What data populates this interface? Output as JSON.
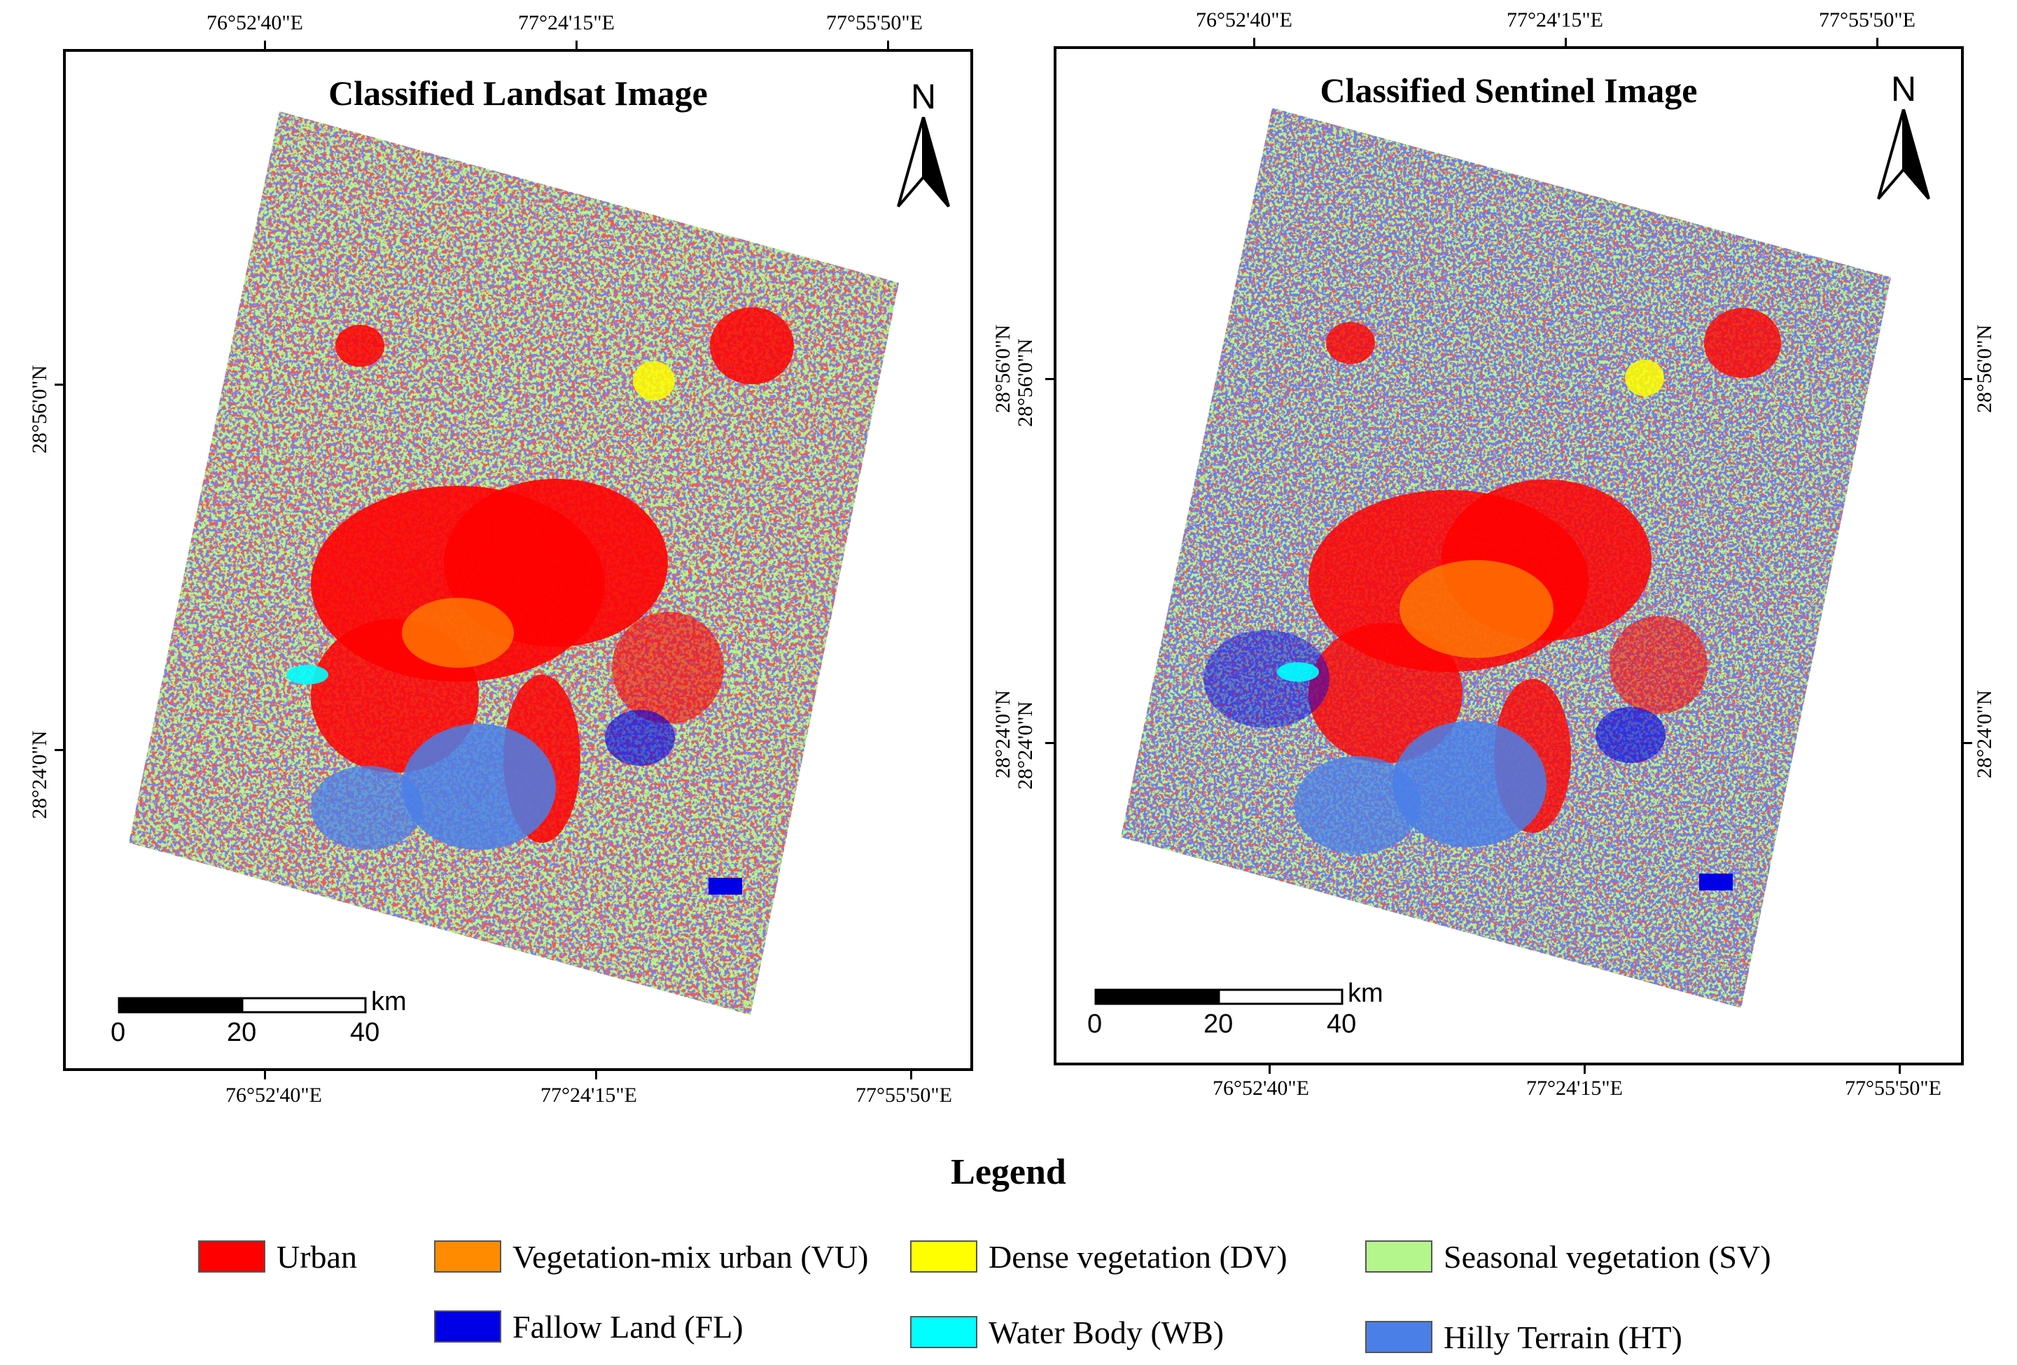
{
  "maps": [
    {
      "title": "Classified Landsat Image",
      "top_lon": [
        "76°52'40\"E",
        "77°24'15\"E",
        "77°55'50\"E"
      ],
      "bottom_lon": [
        "76°52'40\"E",
        "77°24'15\"E",
        "77°55'50\"E"
      ],
      "left_lat": [
        "28°56'0\"N",
        "28°24'0\"N"
      ],
      "right_lat": [
        "28°56'0\"N",
        "28°24'0\"N"
      ],
      "north_label": "N",
      "scale": {
        "unit": "km",
        "ticks": [
          "0",
          "20",
          "40"
        ]
      }
    },
    {
      "title": "Classified Sentinel Image",
      "top_lon": [
        "76°52'40\"E",
        "77°24'15\"E",
        "77°55'50\"E"
      ],
      "bottom_lon": [
        "76°52'40\"E",
        "77°24'15\"E",
        "77°55'50\"E"
      ],
      "left_lat": [
        "28°56'0\"N",
        "28°24'0\"N"
      ],
      "right_lat": [
        "28°56'0\"N",
        "28°24'0\"N"
      ],
      "north_label": "N",
      "scale": {
        "unit": "km",
        "ticks": [
          "0",
          "20",
          "40"
        ]
      }
    }
  ],
  "legend": {
    "title": "Legend",
    "items": [
      {
        "label": "Urban",
        "color": "#ff0000"
      },
      {
        "label": "Vegetation-mix urban (VU)",
        "color": "#ff8c00"
      },
      {
        "label": "Dense vegetation (DV)",
        "color": "#ffff00"
      },
      {
        "label": "Seasonal vegetation (SV)",
        "color": "#b4f58c"
      },
      {
        "label": "Fallow Land (FL)",
        "color": "#0000e6"
      },
      {
        "label": "Water Body (WB)",
        "color": "#00ffff"
      },
      {
        "label": "Hilly Terrain (HT)",
        "color": "#4a7fe8"
      }
    ]
  }
}
